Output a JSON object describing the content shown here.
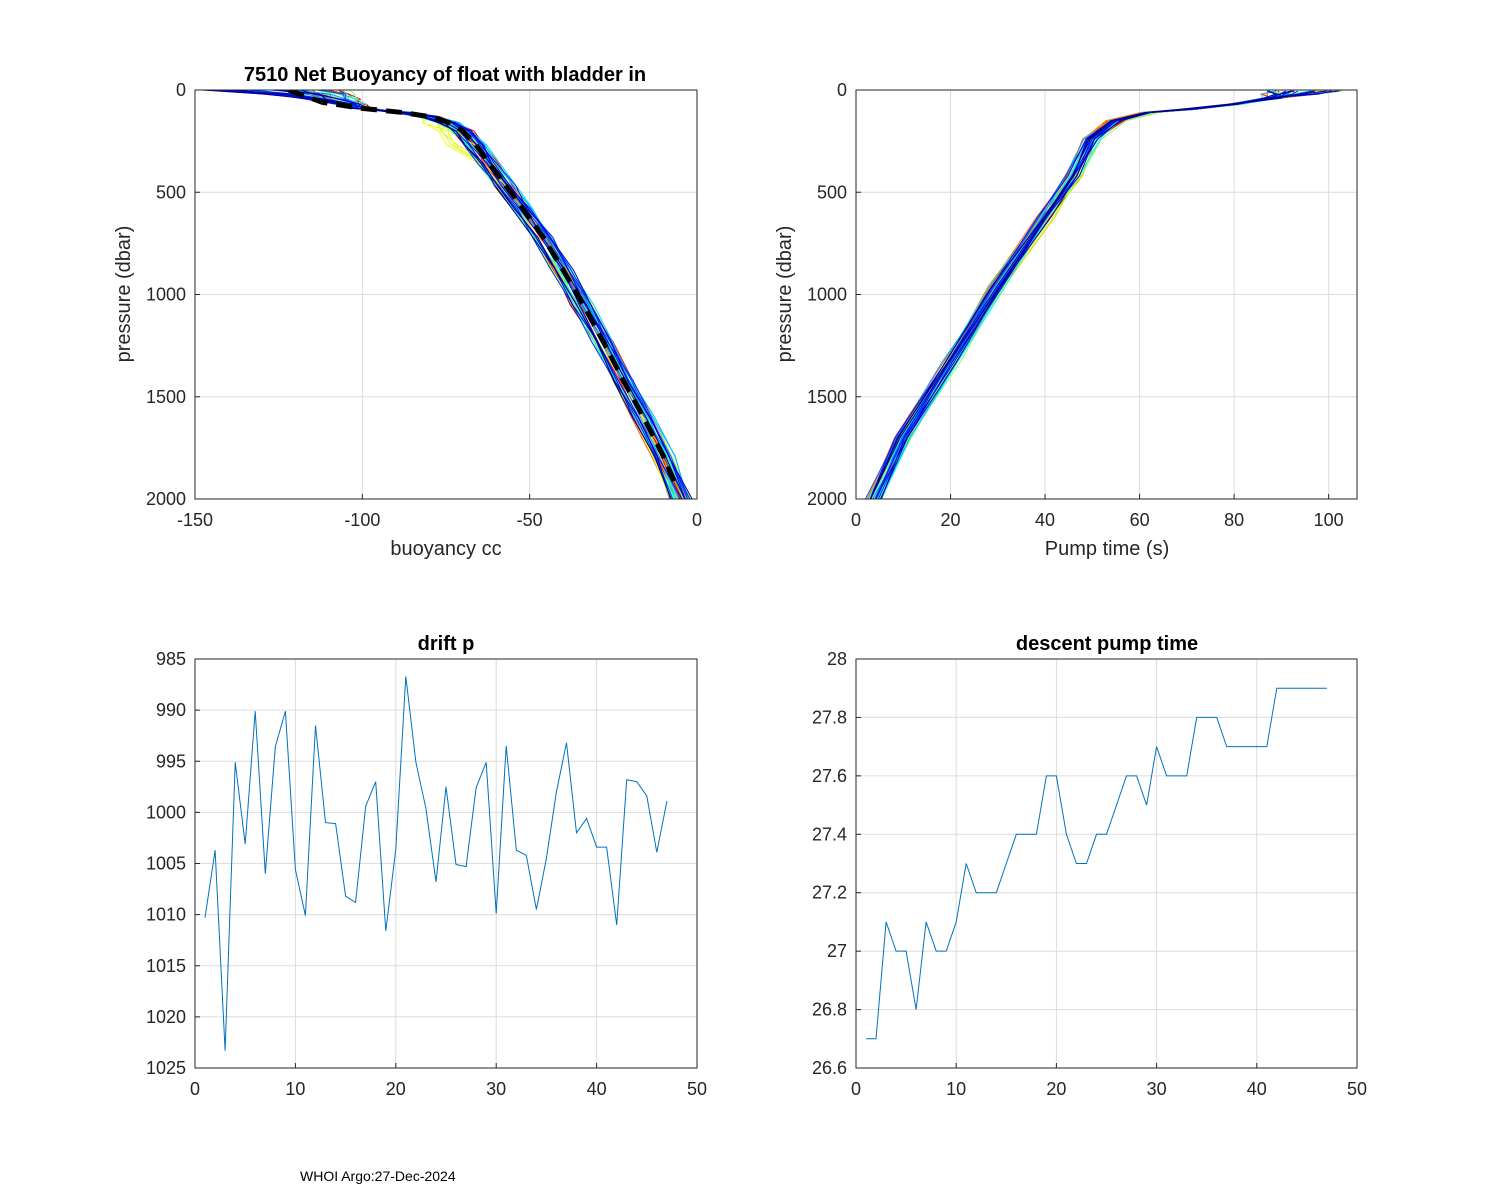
{
  "footer": "WHOI Argo:27-Dec-2024",
  "colors": {
    "series": "#0072bd",
    "mean": "#000000",
    "axis": "#262626",
    "grid": "#dcdcdc"
  },
  "chart_data": [
    {
      "id": "buoyancy",
      "type": "line",
      "title": "7510 Net Buoyancy of float with bladder in",
      "xlabel": "buoyancy cc",
      "ylabel": "pressure (dbar)",
      "xlim": [
        -150,
        0
      ],
      "ylim": [
        0,
        2000
      ],
      "y_reversed": true,
      "xticks": [
        -150,
        -100,
        -50,
        0
      ],
      "yticks": [
        0,
        500,
        1000,
        1500,
        2000
      ],
      "grid": true,
      "profile_count": 47,
      "mean_profile": {
        "label": "dashed black",
        "x": [
          -122,
          -112,
          -100,
          -88,
          -80,
          -74,
          -70,
          -66,
          -62,
          -57,
          -52,
          -46,
          -40,
          -34,
          -28,
          -22,
          -16,
          -10,
          -6
        ],
        "y": [
          0,
          60,
          90,
          110,
          130,
          160,
          200,
          270,
          360,
          470,
          580,
          720,
          880,
          1050,
          1230,
          1420,
          1600,
          1790,
          1950
        ]
      },
      "envelope": {
        "x_left": [
          -150,
          -140,
          -120,
          -100,
          -85,
          -77,
          -72,
          -68,
          -64,
          -59,
          -54,
          -48,
          -42,
          -36,
          -30,
          -24,
          -18,
          -12,
          -8
        ],
        "x_right": [
          -100,
          -95,
          -90,
          -82,
          -75,
          -70,
          -66,
          -62,
          -58,
          -53,
          -48,
          -42,
          -36,
          -30,
          -24,
          -18,
          -12,
          -6,
          -3
        ],
        "y": [
          0,
          60,
          90,
          110,
          130,
          160,
          200,
          270,
          360,
          470,
          580,
          720,
          880,
          1050,
          1230,
          1420,
          1600,
          1790,
          2000
        ]
      }
    },
    {
      "id": "pumptime",
      "type": "line",
      "title": "",
      "xlabel": "Pump time (s)",
      "ylabel": "pressure (dbar)",
      "xlim": [
        0,
        106
      ],
      "ylim": [
        0,
        2000
      ],
      "y_reversed": true,
      "xticks": [
        0,
        20,
        40,
        60,
        80,
        100
      ],
      "yticks": [
        0,
        500,
        1000,
        1500,
        2000
      ],
      "grid": true,
      "profile_count": 47,
      "mean_profile": {
        "x": [
          4,
          10,
          20,
          30,
          40,
          46,
          50,
          55,
          62,
          70,
          80,
          90,
          100
        ],
        "y": [
          2000,
          1700,
          1330,
          960,
          620,
          420,
          240,
          150,
          110,
          95,
          70,
          40,
          5
        ]
      }
    },
    {
      "id": "driftp",
      "type": "line",
      "title": "drift p",
      "xlabel": "",
      "ylabel": "",
      "xlim": [
        0,
        50
      ],
      "ylim": [
        985,
        1025
      ],
      "y_reversed": true,
      "xticks": [
        0,
        10,
        20,
        30,
        40,
        50
      ],
      "yticks": [
        985,
        990,
        995,
        1000,
        1005,
        1010,
        1015,
        1020,
        1025
      ],
      "grid": true,
      "x": [
        1,
        2,
        3,
        4,
        5,
        6,
        7,
        8,
        9,
        10,
        11,
        12,
        13,
        14,
        15,
        16,
        17,
        18,
        19,
        20,
        21,
        22,
        23,
        24,
        25,
        26,
        27,
        28,
        29,
        30,
        31,
        32,
        33,
        34,
        35,
        36,
        37,
        38,
        39,
        40,
        41,
        42,
        43,
        44,
        45,
        46,
        47
      ],
      "values": [
        1010.3,
        1003.7,
        1023.3,
        995.1,
        1003.1,
        990.1,
        1006.0,
        993.6,
        990.1,
        1005.6,
        1010.1,
        991.5,
        1001.0,
        1001.1,
        1008.2,
        1008.8,
        999.4,
        997.0,
        1011.6,
        1003.6,
        986.7,
        995.1,
        999.6,
        1006.8,
        997.5,
        1005.1,
        1005.3,
        997.6,
        995.1,
        1009.9,
        993.5,
        1003.7,
        1004.2,
        1009.5,
        1004.5,
        998.0,
        993.2,
        1002.0,
        1000.6,
        1003.4,
        1003.4,
        1011.0,
        996.8,
        997.0,
        998.4,
        1003.9,
        998.9
      ]
    },
    {
      "id": "descentpump",
      "type": "line",
      "title": "descent pump time",
      "xlabel": "",
      "ylabel": "",
      "xlim": [
        0,
        50
      ],
      "ylim": [
        26.6,
        28
      ],
      "y_reversed": false,
      "xticks": [
        0,
        10,
        20,
        30,
        40,
        50
      ],
      "yticks": [
        26.6,
        26.8,
        27,
        27.2,
        27.4,
        27.6,
        27.8,
        28
      ],
      "ytick_labels": [
        "26.6",
        "26.8",
        "27",
        "27.2",
        "27.4",
        "27.6",
        "27.8",
        "28"
      ],
      "grid": true,
      "x": [
        1,
        2,
        3,
        4,
        5,
        6,
        7,
        8,
        9,
        10,
        11,
        12,
        13,
        14,
        15,
        16,
        17,
        18,
        19,
        20,
        21,
        22,
        23,
        24,
        25,
        26,
        27,
        28,
        29,
        30,
        31,
        32,
        33,
        34,
        35,
        36,
        37,
        38,
        39,
        40,
        41,
        42,
        43,
        44,
        45,
        46,
        47
      ],
      "values": [
        26.7,
        26.7,
        27.1,
        27.0,
        27.0,
        26.8,
        27.1,
        27.0,
        27.0,
        27.1,
        27.3,
        27.2,
        27.2,
        27.2,
        27.3,
        27.4,
        27.4,
        27.4,
        27.6,
        27.6,
        27.4,
        27.3,
        27.3,
        27.4,
        27.4,
        27.5,
        27.6,
        27.6,
        27.5,
        27.7,
        27.6,
        27.6,
        27.6,
        27.8,
        27.8,
        27.8,
        27.7,
        27.7,
        27.7,
        27.7,
        27.7,
        27.9,
        27.9,
        27.9,
        27.9,
        27.9,
        27.9
      ]
    }
  ]
}
